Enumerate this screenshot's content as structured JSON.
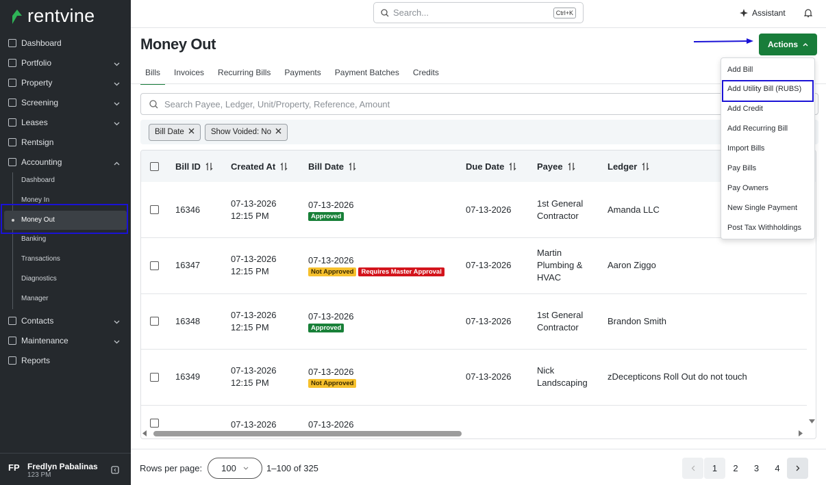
{
  "brand": "rentvine",
  "topbar": {
    "search": "Search...",
    "shortcut": "Ctrl+K",
    "assistant": "Assistant"
  },
  "sidebar": {
    "nav_top": [
      {
        "label": "Dashboard"
      },
      {
        "label": "Portfolio",
        "has_submenu": true
      },
      {
        "label": "Property",
        "has_submenu": true
      },
      {
        "label": "Screening",
        "has_submenu": true
      },
      {
        "label": "Leases",
        "has_submenu": true
      },
      {
        "label": "Rentsign"
      },
      {
        "label": "Accounting",
        "has_submenu": true,
        "open": true
      }
    ],
    "accounting_sub": [
      {
        "label": "Dashboard"
      },
      {
        "label": "Money In"
      },
      {
        "label": "Money Out",
        "active": true
      },
      {
        "label": "Banking"
      },
      {
        "label": "Transactions"
      },
      {
        "label": "Diagnostics"
      },
      {
        "label": "Manager"
      }
    ],
    "nav_bottom": [
      {
        "label": "Contacts",
        "has_submenu": true
      },
      {
        "label": "Maintenance",
        "has_submenu": true
      },
      {
        "label": "Reports"
      }
    ],
    "user": {
      "initials": "FP",
      "name": "Fredlyn Pabalinas",
      "subtitle": "123 PM"
    }
  },
  "header": {
    "title": "Money Out",
    "actions": "Actions"
  },
  "tabs": [
    {
      "label": "Bills",
      "active": true
    },
    {
      "label": "Invoices"
    },
    {
      "label": "Recurring Bills"
    },
    {
      "label": "Payments"
    },
    {
      "label": "Payment Batches"
    },
    {
      "label": "Credits"
    }
  ],
  "filter": {
    "placeholder": "Search Payee, Ledger, Unit/Property, Reference, Amount",
    "chips": [
      "Bill Date",
      "Show Voided: No"
    ]
  },
  "table": {
    "columns": [
      "Bill ID",
      "Created At",
      "Bill Date",
      "Due Date",
      "Payee",
      "Ledger"
    ],
    "rows": [
      {
        "bill_id": "16346",
        "created_date": "07-13-2026",
        "created_time": "12:15 PM",
        "bill_date": "07-13-2026",
        "badges": [
          {
            "text": "Approved",
            "color": "#188038"
          }
        ],
        "due_date": "07-13-2026",
        "payee": "1st General Contractor",
        "ledger": "Amanda LLC"
      },
      {
        "bill_id": "16347",
        "created_date": "07-13-2026",
        "created_time": "12:15 PM",
        "bill_date": "07-13-2026",
        "badges": [
          {
            "text": "Not Approved",
            "color": "#f6c02c"
          },
          {
            "text": "Requires Master Approval",
            "color": "#d3141c"
          }
        ],
        "due_date": "07-13-2026",
        "payee": "Martin Plumbing & HVAC",
        "ledger": "Aaron Ziggo"
      },
      {
        "bill_id": "16348",
        "created_date": "07-13-2026",
        "created_time": "12:15 PM",
        "bill_date": "07-13-2026",
        "badges": [
          {
            "text": "Approved",
            "color": "#188038"
          }
        ],
        "due_date": "07-13-2026",
        "payee": "1st General Contractor",
        "ledger": "Brandon Smith"
      },
      {
        "bill_id": "16349",
        "created_date": "07-13-2026",
        "created_time": "12:15 PM",
        "bill_date": "07-13-2026",
        "badges": [
          {
            "text": "Not Approved",
            "color": "#f6c02c"
          }
        ],
        "due_date": "07-13-2026",
        "payee": "Nick Landscaping",
        "ledger": "zDecepticons Roll Out do not touch"
      },
      {
        "created_date": "07-13-2026",
        "bill_date": "07-13-2026"
      }
    ]
  },
  "actions_menu": [
    {
      "label": "Add Bill"
    },
    {
      "label": "Add Utility Bill (RUBS)",
      "highlighted": true
    },
    {
      "label": "Add Credit"
    },
    {
      "label": "Add Recurring Bill"
    },
    {
      "label": "Import Bills"
    },
    {
      "label": "Pay Bills"
    },
    {
      "label": "Pay Owners"
    },
    {
      "label": "New Single Payment"
    },
    {
      "label": "Post Tax Withholdings"
    }
  ],
  "footer": {
    "rows_label": "Rows per page:",
    "rows_value": "100",
    "range": "1–100 of 325",
    "pages": [
      "1",
      "2",
      "3",
      "4"
    ],
    "current_page": "1"
  }
}
